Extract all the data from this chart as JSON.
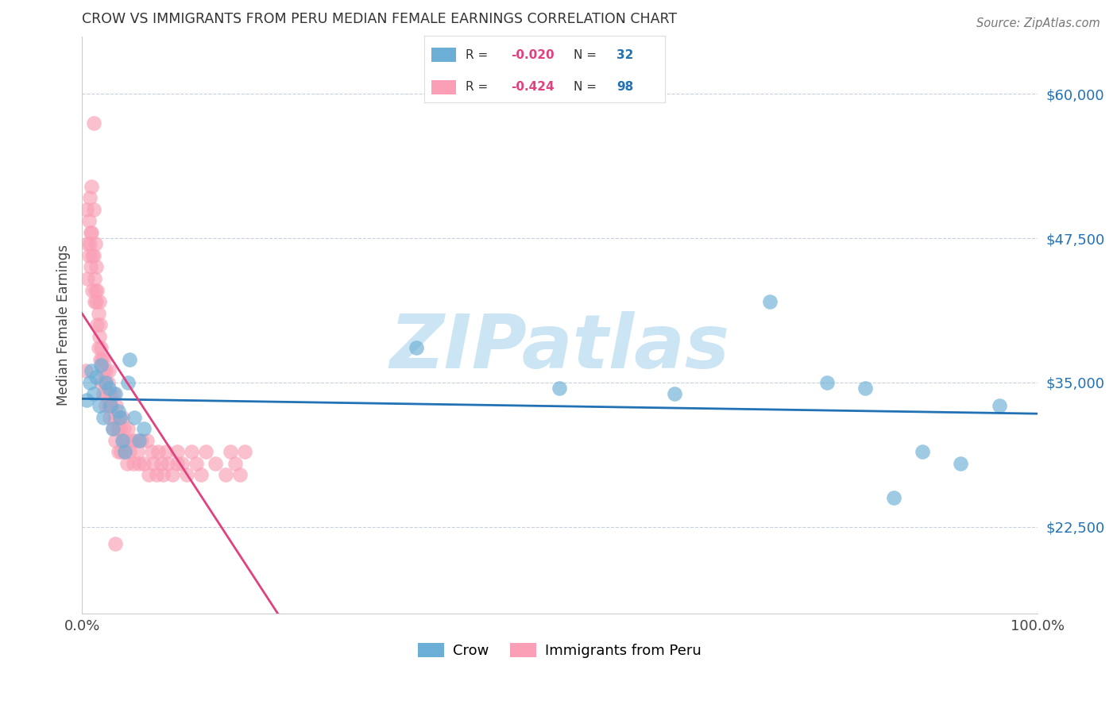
{
  "title": "CROW VS IMMIGRANTS FROM PERU MEDIAN FEMALE EARNINGS CORRELATION CHART",
  "source": "Source: ZipAtlas.com",
  "ylabel": "Median Female Earnings",
  "yticks": [
    22500,
    35000,
    47500,
    60000
  ],
  "ytick_labels": [
    "$22,500",
    "$35,000",
    "$47,500",
    "$60,000"
  ],
  "xlim": [
    0.0,
    1.0
  ],
  "ylim": [
    15000,
    65000
  ],
  "crow_R": "-0.020",
  "crow_N": "32",
  "peru_R": "-0.424",
  "peru_N": "98",
  "blue_color": "#6baed6",
  "pink_color": "#fa9fb5",
  "blue_line_color": "#2171b5",
  "pink_line_color": "#e0417f",
  "watermark_color": "#cce5f5",
  "background_color": "#ffffff",
  "crow_x": [
    0.005,
    0.008,
    0.01,
    0.012,
    0.015,
    0.018,
    0.02,
    0.022,
    0.025,
    0.028,
    0.03,
    0.032,
    0.035,
    0.038,
    0.04,
    0.042,
    0.045,
    0.048,
    0.05,
    0.055,
    0.06,
    0.065,
    0.35,
    0.5,
    0.62,
    0.72,
    0.78,
    0.82,
    0.85,
    0.88,
    0.92,
    0.96
  ],
  "crow_y": [
    33500,
    35000,
    36000,
    34000,
    35500,
    33000,
    36500,
    32000,
    35000,
    34500,
    33000,
    31000,
    34000,
    32500,
    32000,
    30000,
    29000,
    35000,
    37000,
    32000,
    30000,
    31000,
    38000,
    34500,
    34000,
    42000,
    35000,
    34500,
    25000,
    29000,
    28000,
    33000
  ],
  "peru_x": [
    0.004,
    0.005,
    0.006,
    0.006,
    0.007,
    0.007,
    0.008,
    0.008,
    0.009,
    0.009,
    0.01,
    0.01,
    0.011,
    0.011,
    0.012,
    0.012,
    0.013,
    0.013,
    0.014,
    0.014,
    0.015,
    0.015,
    0.016,
    0.016,
    0.017,
    0.017,
    0.018,
    0.018,
    0.019,
    0.019,
    0.02,
    0.02,
    0.021,
    0.022,
    0.022,
    0.023,
    0.024,
    0.025,
    0.025,
    0.026,
    0.027,
    0.028,
    0.028,
    0.029,
    0.03,
    0.031,
    0.032,
    0.033,
    0.034,
    0.035,
    0.036,
    0.037,
    0.038,
    0.039,
    0.04,
    0.041,
    0.042,
    0.043,
    0.044,
    0.045,
    0.046,
    0.047,
    0.048,
    0.05,
    0.052,
    0.054,
    0.056,
    0.058,
    0.06,
    0.062,
    0.065,
    0.068,
    0.07,
    0.073,
    0.075,
    0.078,
    0.08,
    0.083,
    0.085,
    0.088,
    0.09,
    0.095,
    0.1,
    0.105,
    0.11,
    0.115,
    0.12,
    0.125,
    0.13,
    0.14,
    0.15,
    0.155,
    0.16,
    0.165,
    0.17,
    0.1,
    0.035,
    0.012
  ],
  "peru_y": [
    36000,
    50000,
    47000,
    44000,
    49000,
    46000,
    51000,
    47000,
    48000,
    45000,
    52000,
    48000,
    46000,
    43000,
    50000,
    46000,
    44000,
    42000,
    47000,
    43000,
    45000,
    42000,
    40000,
    43000,
    41000,
    38000,
    42000,
    39000,
    40000,
    37000,
    38000,
    35000,
    37000,
    36000,
    34000,
    37000,
    35000,
    33000,
    36000,
    34000,
    35000,
    33000,
    36000,
    32000,
    34000,
    33000,
    31000,
    34000,
    32000,
    30000,
    33000,
    31000,
    29000,
    32000,
    31000,
    29000,
    32000,
    30000,
    31000,
    29000,
    30000,
    28000,
    31000,
    29000,
    30000,
    28000,
    30000,
    29000,
    28000,
    30000,
    28000,
    30000,
    27000,
    29000,
    28000,
    27000,
    29000,
    28000,
    27000,
    29000,
    28000,
    27000,
    29000,
    28000,
    27000,
    29000,
    28000,
    27000,
    29000,
    28000,
    27000,
    29000,
    28000,
    27000,
    29000,
    28000,
    21000,
    57500
  ]
}
